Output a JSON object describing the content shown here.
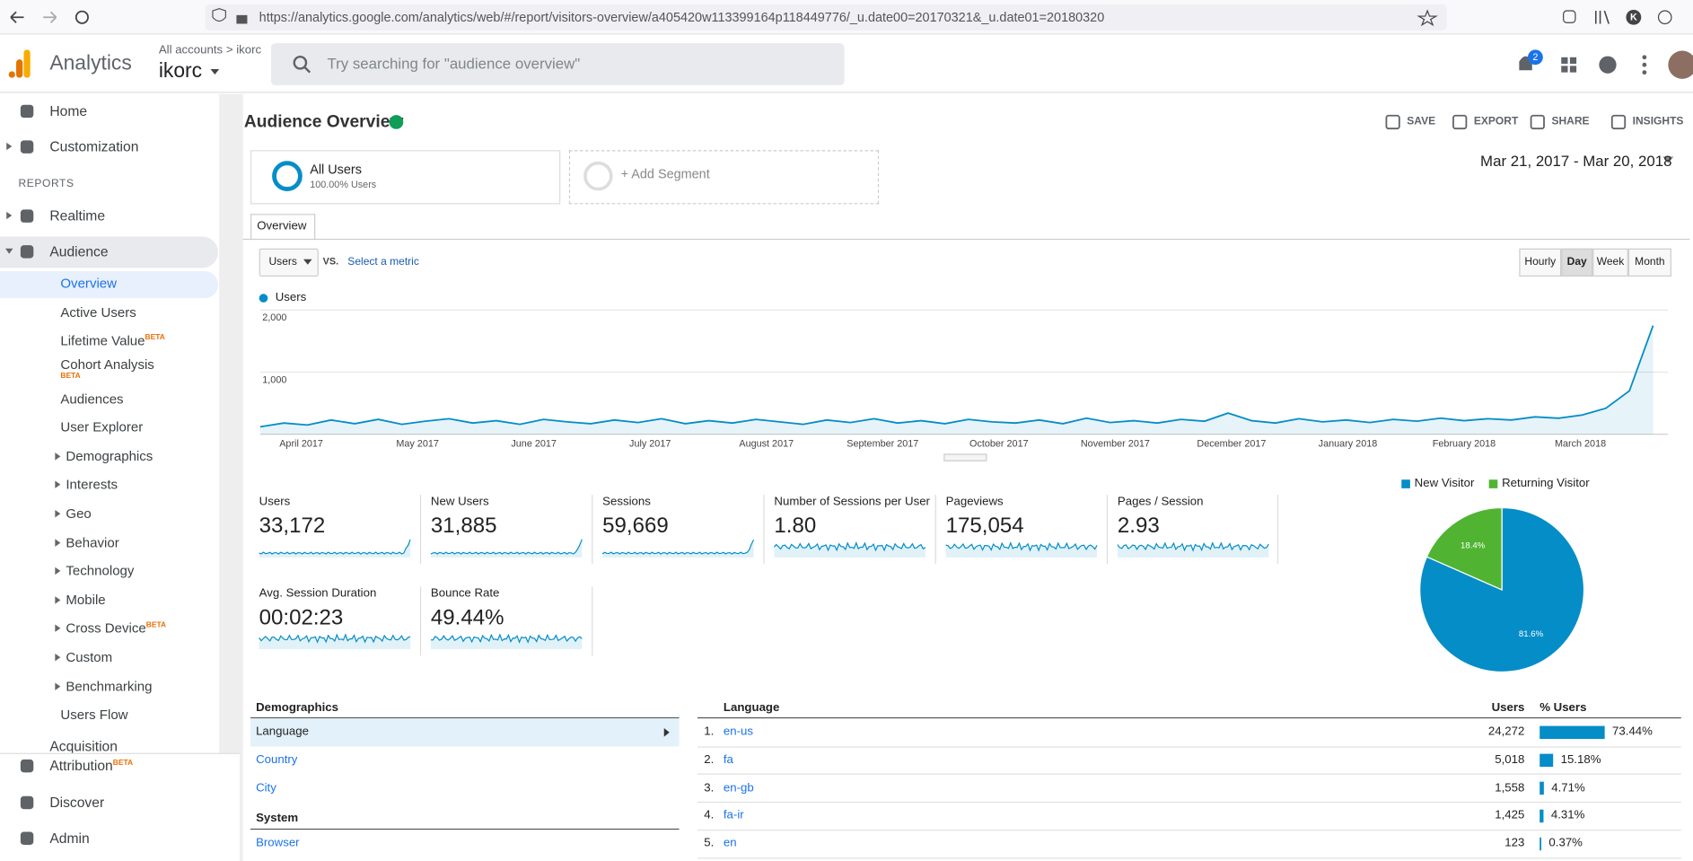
{
  "browser": {
    "url": "https://analytics.google.com/analytics/web/#/report/visitors-overview/a405420w113399164p118449776/_u.date00=20170321&_u.date01=20180320",
    "profile_letter": "K"
  },
  "header": {
    "product": "Analytics",
    "breadcrumb": "All accounts > ikorc",
    "account": "ikorc",
    "search_placeholder": "Try searching for \"audience overview\"",
    "notifications": "2"
  },
  "sidebar": {
    "top": [
      {
        "label": "Home"
      },
      {
        "label": "Customization"
      }
    ],
    "section": "REPORTS",
    "reports": [
      {
        "label": "Realtime"
      },
      {
        "label": "Audience"
      }
    ],
    "audience": [
      {
        "label": "Overview"
      },
      {
        "label": "Active Users"
      },
      {
        "label": "Lifetime Value",
        "badge": "BETA"
      },
      {
        "label": "Cohort Analysis",
        "badge": "BETA"
      },
      {
        "label": "Audiences"
      },
      {
        "label": "User Explorer"
      },
      {
        "label": "Demographics"
      },
      {
        "label": "Interests"
      },
      {
        "label": "Geo"
      },
      {
        "label": "Behavior"
      },
      {
        "label": "Technology"
      },
      {
        "label": "Mobile"
      },
      {
        "label": "Cross Device",
        "badge": "BETA"
      },
      {
        "label": "Custom"
      },
      {
        "label": "Benchmarking"
      },
      {
        "label": "Users Flow"
      }
    ],
    "acquisition": "Acquisition",
    "bottom": [
      {
        "label": "Attribution",
        "badge": "BETA"
      },
      {
        "label": "Discover"
      },
      {
        "label": "Admin"
      }
    ]
  },
  "report": {
    "title": "Audience Overview",
    "actions": [
      "SAVE",
      "EXPORT",
      "SHARE",
      "INSIGHTS"
    ],
    "segment": {
      "name": "All Users",
      "share": "100.00% Users"
    },
    "add_segment": "+ Add Segment",
    "date_range": "Mar 21, 2017 - Mar 20, 2018",
    "tab": "Overview",
    "metric_select": "Users",
    "vs": "VS.",
    "select_metric": "Select a metric",
    "granularity": [
      "Hourly",
      "Day",
      "Week",
      "Month"
    ],
    "granularity_active": "Day",
    "metrics": [
      {
        "name": "Users",
        "value": "33,172"
      },
      {
        "name": "New Users",
        "value": "31,885"
      },
      {
        "name": "Sessions",
        "value": "59,669"
      },
      {
        "name": "Number of Sessions per User",
        "value": "1.80"
      },
      {
        "name": "Pageviews",
        "value": "175,054"
      },
      {
        "name": "Pages / Session",
        "value": "2.93"
      },
      {
        "name": "Avg. Session Duration",
        "value": "00:02:23"
      },
      {
        "name": "Bounce Rate",
        "value": "49.44%"
      }
    ]
  },
  "chart_data": [
    {
      "type": "line",
      "series": [
        {
          "name": "Users",
          "color": "#058dc7",
          "values": [
            120,
            180,
            150,
            230,
            170,
            240,
            160,
            210,
            250,
            180,
            220,
            160,
            240,
            200,
            170,
            230,
            190,
            250,
            170,
            220,
            180,
            240,
            200,
            160,
            230,
            190,
            250,
            180,
            220,
            170,
            240,
            200,
            180,
            230,
            170,
            260,
            190,
            220,
            180,
            240,
            210,
            340,
            220,
            180,
            250,
            200,
            230,
            190,
            240,
            210,
            260,
            220,
            250,
            230,
            280,
            260,
            310,
            420,
            700,
            1750
          ]
        }
      ],
      "x_labels": [
        "April 2017",
        "May 2017",
        "June 2017",
        "July 2017",
        "August 2017",
        "September 2017",
        "October 2017",
        "November 2017",
        "December 2017",
        "January 2018",
        "February 2018",
        "March 2018"
      ],
      "ylim": [
        0,
        2000
      ],
      "yticks": [
        {
          "value": 1000,
          "label": "1,000"
        },
        {
          "value": 2000,
          "label": "2,000"
        }
      ],
      "grid": true
    },
    {
      "type": "pie",
      "categories": [
        "New Visitor",
        "Returning Visitor"
      ],
      "values": [
        81.6,
        18.4
      ],
      "value_labels": [
        "81.6%",
        "18.4%"
      ],
      "colors": [
        "#058dc7",
        "#50b432"
      ]
    }
  ],
  "demographics": {
    "title": "Demographics",
    "items": [
      "Language",
      "Country",
      "City"
    ],
    "system_title": "System",
    "system_items": [
      "Browser"
    ]
  },
  "language_table": {
    "headers": [
      "Language",
      "Users",
      "% Users"
    ],
    "bar_color": "#058dc7",
    "rows": [
      {
        "rank": "1.",
        "language": "en-us",
        "users": "24,272",
        "pct": 73.44,
        "pct_label": "73.44%"
      },
      {
        "rank": "2.",
        "language": "fa",
        "users": "5,018",
        "pct": 15.18,
        "pct_label": "15.18%"
      },
      {
        "rank": "3.",
        "language": "en-gb",
        "users": "1,558",
        "pct": 4.71,
        "pct_label": "4.71%"
      },
      {
        "rank": "4.",
        "language": "fa-ir",
        "users": "1,425",
        "pct": 4.31,
        "pct_label": "4.31%"
      },
      {
        "rank": "5.",
        "language": "en",
        "users": "123",
        "pct": 0.37,
        "pct_label": "0.37%"
      }
    ]
  }
}
